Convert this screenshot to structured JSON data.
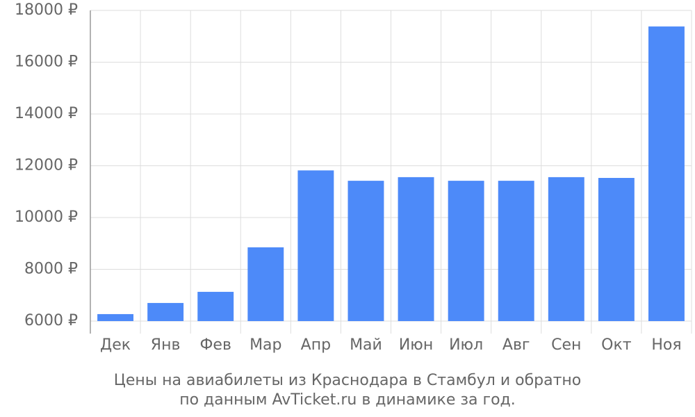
{
  "chart_data": {
    "type": "bar",
    "categories": [
      "Дек",
      "Янв",
      "Фев",
      "Мар",
      "Апр",
      "Май",
      "Июн",
      "Июл",
      "Авг",
      "Сен",
      "Окт",
      "Ноя"
    ],
    "values": [
      6270,
      6700,
      7130,
      8850,
      11820,
      11420,
      11560,
      11420,
      11420,
      11560,
      11530,
      17380
    ],
    "color": "#4d8af9",
    "ylim": [
      6000,
      18000
    ],
    "yticks": [
      {
        "value": 6000,
        "label": "6000 ₽"
      },
      {
        "value": 8000,
        "label": "8000 ₽"
      },
      {
        "value": 10000,
        "label": "10000 ₽"
      },
      {
        "value": 12000,
        "label": "12000 ₽"
      },
      {
        "value": 14000,
        "label": "14000 ₽"
      },
      {
        "value": 16000,
        "label": "16000 ₽"
      },
      {
        "value": 18000,
        "label": "18000 ₽"
      }
    ],
    "grid": true,
    "caption": [
      "Цены на авиабилеты из Краснодара в Стамбул и обратно",
      "по данным AvTicket.ru в динамике за год."
    ]
  }
}
